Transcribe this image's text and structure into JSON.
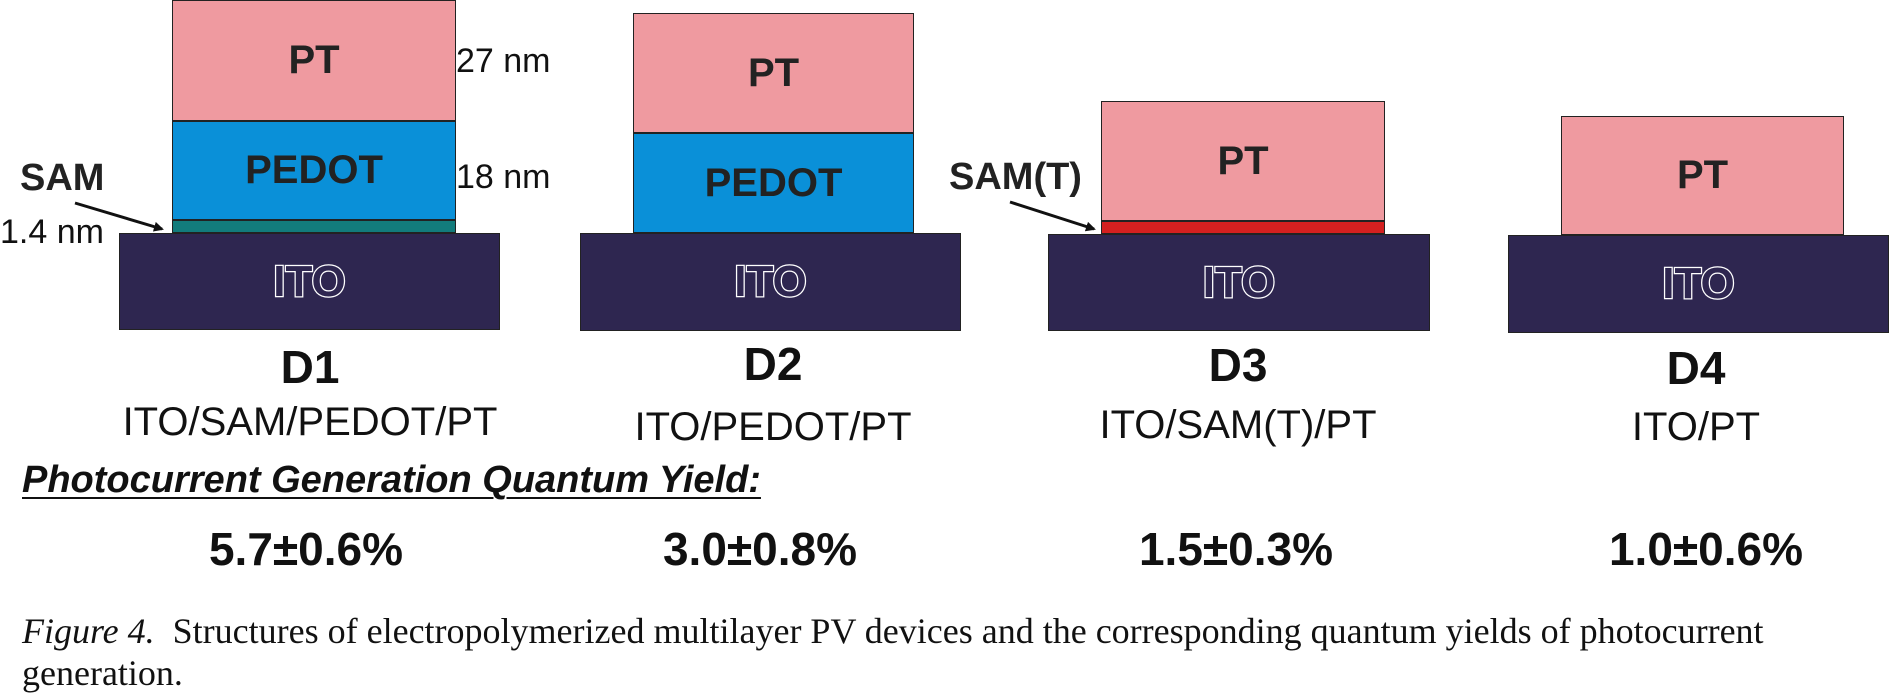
{
  "devices": [
    {
      "id": "D1",
      "stack_label": "ITO/SAM/PEDOT/PT",
      "quantum_yield": "5.7±0.6%",
      "layers": {
        "pt": "PT",
        "pedot": "PEDOT",
        "ito": "ITO"
      },
      "thickness_labels": {
        "pt": "27 nm",
        "pedot": "18 nm",
        "sam": "1.4 nm"
      },
      "callout": "SAM"
    },
    {
      "id": "D2",
      "stack_label": "ITO/PEDOT/PT",
      "quantum_yield": "3.0±0.8%",
      "layers": {
        "pt": "PT",
        "pedot": "PEDOT",
        "ito": "ITO"
      }
    },
    {
      "id": "D3",
      "stack_label": "ITO/SAM(T)/PT",
      "quantum_yield": "1.5±0.3%",
      "layers": {
        "pt": "PT",
        "ito": "ITO"
      },
      "callout": "SAM(T)"
    },
    {
      "id": "D4",
      "stack_label": "ITO/PT",
      "quantum_yield": "1.0±0.6%",
      "layers": {
        "pt": "PT",
        "ito": "ITO"
      }
    }
  ],
  "yield_heading": "Photocurrent Generation Quantum Yield:",
  "caption": {
    "figure_label": "Figure 4.",
    "text": "Structures of electropolymerized multilayer PV devices and the corresponding quantum yields of photocurrent generation."
  },
  "colors": {
    "pt": "#ef9aa0",
    "pedot": "#0a90d8",
    "sam": "#127c7c",
    "sam_t": "#d42020",
    "ito": "#2e2650"
  }
}
